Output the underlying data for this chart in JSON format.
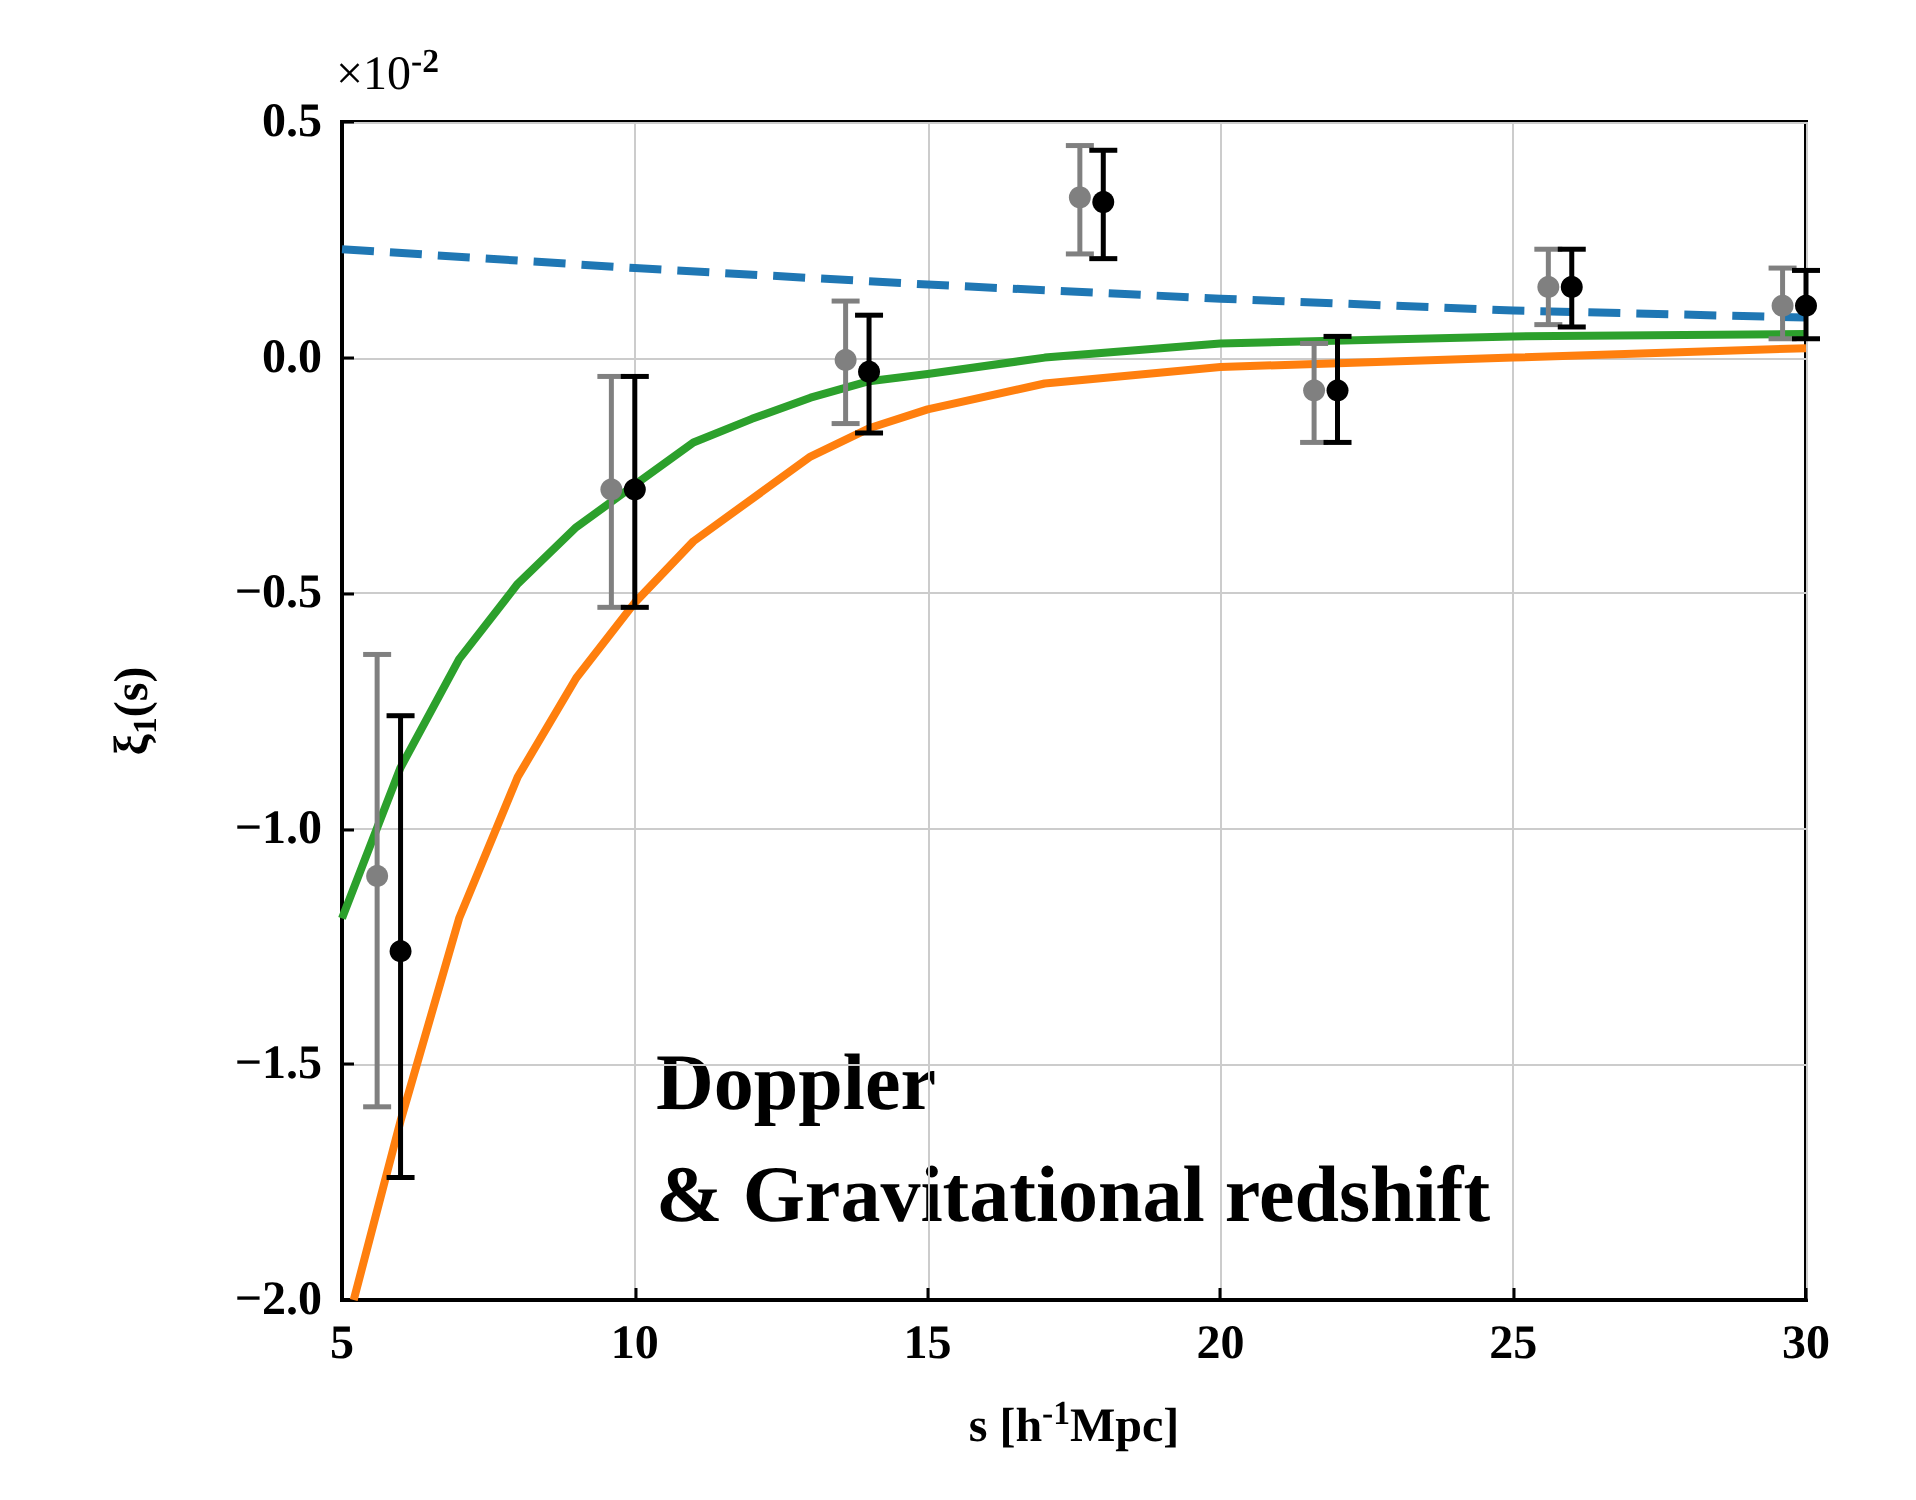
{
  "chart_data": {
    "type": "scatter",
    "xlabel": "s [h$^{-1}$Mpc]",
    "ylabel": "ξ$_{1}$(s)",
    "annotations": [
      "×10$^{-2}$",
      "Doppler\n& Gravitational redshift"
    ],
    "xlim": [
      5,
      30
    ],
    "xticks": [
      5,
      10,
      15,
      20,
      25,
      30
    ],
    "ylim": [
      -2.0,
      0.5
    ],
    "yticks": [
      {
        "value": -2.0,
        "label": "−2.0"
      },
      {
        "value": -1.5,
        "label": "−1.5"
      },
      {
        "value": -1.0,
        "label": "−1.0"
      },
      {
        "value": -0.5,
        "label": "−0.5"
      },
      {
        "value": 0.0,
        "label": "0.0"
      },
      {
        "value": 0.5,
        "label": "0.5"
      }
    ],
    "grid": true,
    "series": [
      {
        "type": "line",
        "color": "#1f77b4",
        "line_style": "dashed",
        "marker": "none",
        "x": [
          5,
          10,
          15,
          20,
          25,
          30
        ],
        "values": [
          0.23,
          0.19,
          0.155,
          0.125,
          0.1,
          0.085
        ]
      },
      {
        "type": "line",
        "color": "#2ca02c",
        "line_style": "solid",
        "marker": "none",
        "x": [
          5,
          6,
          7,
          8,
          9,
          10,
          11,
          12,
          13,
          14,
          15,
          17,
          20,
          25,
          30
        ],
        "values": [
          -1.19,
          -0.87,
          -0.64,
          -0.48,
          -0.36,
          -0.27,
          -0.18,
          -0.13,
          -0.085,
          -0.05,
          -0.035,
          0.0,
          0.03,
          0.045,
          0.05
        ]
      },
      {
        "type": "line",
        "color": "#ff7f0e",
        "line_style": "solid",
        "marker": "none",
        "x": [
          5.2,
          6,
          7,
          8,
          9,
          10,
          11,
          12,
          13,
          14,
          15,
          17,
          20,
          25,
          30
        ],
        "values": [
          -2.0,
          -1.62,
          -1.19,
          -0.89,
          -0.68,
          -0.52,
          -0.39,
          -0.3,
          -0.21,
          -0.15,
          -0.11,
          -0.055,
          -0.02,
          0.0,
          0.02
        ]
      },
      {
        "color": "#808080",
        "marker": "circle",
        "x": [
          5.6,
          9.6,
          13.6,
          17.6,
          21.6,
          25.6,
          29.6
        ],
        "values": [
          -1.1,
          -0.28,
          -0.005,
          0.34,
          -0.07,
          0.15,
          0.11
        ],
        "errors": [
          [
            -1.59,
            -0.63
          ],
          [
            -0.53,
            -0.04
          ],
          [
            -0.14,
            0.12
          ],
          [
            0.22,
            0.45
          ],
          [
            -0.18,
            0.03
          ],
          [
            0.07,
            0.23
          ],
          [
            0.04,
            0.19
          ]
        ]
      },
      {
        "color": "#000000",
        "marker": "circle",
        "x": [
          6,
          10,
          14,
          18,
          22,
          26,
          30
        ],
        "values": [
          -1.26,
          -0.28,
          -0.03,
          0.33,
          -0.07,
          0.15,
          0.11
        ],
        "errors": [
          [
            -1.74,
            -0.76
          ],
          [
            -0.53,
            -0.04
          ],
          [
            -0.16,
            0.09
          ],
          [
            0.21,
            0.44
          ],
          [
            -0.18,
            0.045
          ],
          [
            0.065,
            0.23
          ],
          [
            0.04,
            0.185
          ]
        ]
      }
    ]
  }
}
